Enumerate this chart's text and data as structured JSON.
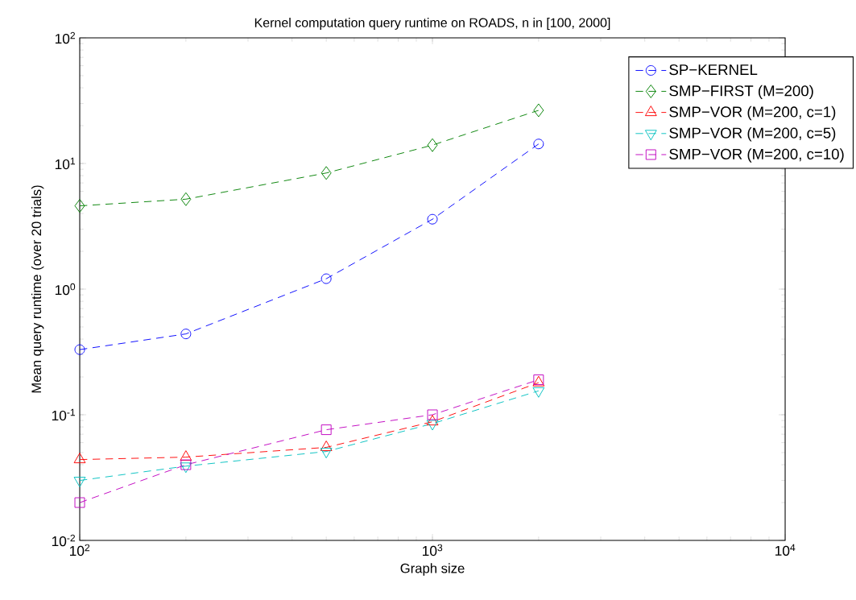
{
  "chart_data": {
    "type": "line",
    "title": "Kernel computation query runtime on ROADS, n in [100, 2000]",
    "xlabel": "Graph size",
    "ylabel": "Mean query runtime (over 20 trials)",
    "log": "xy",
    "grid": false,
    "legend": "top right",
    "line_style": "dashed",
    "x": [
      100,
      200,
      500,
      1000,
      2000
    ],
    "xlim": [
      100,
      10000
    ],
    "ylim": [
      0.01,
      100
    ],
    "xticks": [
      {
        "value": 100,
        "label": "10$^{2}$"
      },
      {
        "value": 1000,
        "label": "10$^{3}$"
      },
      {
        "value": 10000,
        "label": "10$^{4}$"
      }
    ],
    "yticks": [
      {
        "value": 0.01,
        "label": "10$^{-2}$"
      },
      {
        "value": 0.1,
        "label": "10$^{-1}$"
      },
      {
        "value": 1,
        "label": "10$^{0}$"
      },
      {
        "value": 10,
        "label": "10$^{1}$"
      },
      {
        "value": 100,
        "label": "10$^{2}$"
      }
    ],
    "series": [
      {
        "name": "SP−KERNEL",
        "color": "#0000ff",
        "marker": "circle",
        "values": [
          0.33,
          0.44,
          1.21,
          3.6,
          14.3
        ]
      },
      {
        "name": "SMP−FIRST (M=200)",
        "color": "#008000",
        "marker": "diamond",
        "values": [
          4.6,
          5.2,
          8.4,
          14,
          26.5
        ]
      },
      {
        "name": "SMP−VOR (M=200, c=1)",
        "color": "#ff0000",
        "marker": "triangle",
        "values": [
          0.044,
          0.046,
          0.055,
          0.088,
          0.18
        ]
      },
      {
        "name": "SMP−VOR (M=200, c=5)",
        "color": "#00bfbf",
        "marker": "triangle down",
        "values": [
          0.03,
          0.039,
          0.051,
          0.085,
          0.155
        ]
      },
      {
        "name": "SMP−VOR (M=200, c=10)",
        "color": "#bf00bf",
        "marker": "square",
        "values": [
          0.02,
          0.04,
          0.076,
          0.1,
          0.19
        ]
      }
    ]
  }
}
